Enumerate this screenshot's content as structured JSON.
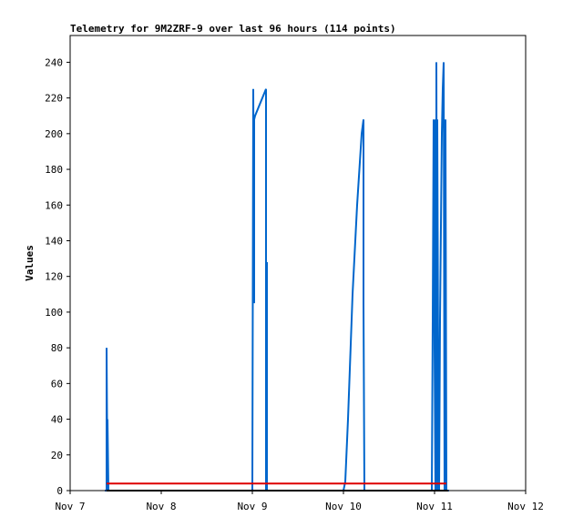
{
  "chart_data": {
    "type": "line",
    "title": "Telemetry for 9M2ZRF-9 over last 96 hours (114 points)",
    "xlabel": "",
    "ylabel": "Values",
    "x_ticks": [
      "Nov 7",
      "Nov 8",
      "Nov 9",
      "Nov 10",
      "Nov 11",
      "Nov 12"
    ],
    "xlim": [
      0,
      5
    ],
    "ylim": [
      0,
      255
    ],
    "y_ticks": [
      0,
      20,
      40,
      60,
      80,
      100,
      120,
      140,
      160,
      180,
      200,
      220,
      240
    ],
    "grid": false,
    "legend": "none",
    "series": [
      {
        "color": "#0066cc",
        "x": [
          0.38,
          0.4,
          0.4,
          0.41,
          0.41,
          0.42,
          2.0,
          2.01,
          2.02,
          2.02,
          2.03,
          2.15,
          2.15,
          2.16,
          2.16,
          2.16,
          3.0,
          3.02,
          3.05,
          3.1,
          3.15,
          3.2,
          3.22,
          3.22,
          3.23,
          3.23,
          3.24,
          3.97,
          3.98,
          3.99,
          4.0,
          4.01,
          4.01,
          4.02,
          4.02,
          4.03,
          4.03,
          4.04,
          4.05,
          4.06,
          4.07,
          4.08,
          4.09,
          4.1,
          4.11,
          4.11,
          4.12,
          4.13,
          4.14,
          4.15,
          4.16
        ],
        "y": [
          0,
          0,
          80,
          0,
          40,
          0,
          0,
          225,
          105,
          208,
          210,
          225,
          0,
          128,
          0,
          0,
          0,
          5,
          40,
          110,
          160,
          200,
          208,
          105,
          0,
          0,
          0,
          0,
          96,
          208,
          80,
          0,
          208,
          15,
          240,
          0,
          208,
          68,
          0,
          95,
          148,
          200,
          225,
          240,
          0,
          145,
          208,
          0,
          0,
          0,
          0
        ]
      },
      {
        "color": "#dd0000",
        "x": [
          0.4,
          4.13
        ],
        "y": [
          4,
          4
        ]
      },
      {
        "color": "#000000",
        "x": [
          0.4,
          4.15
        ],
        "y": [
          0,
          0
        ]
      }
    ]
  }
}
